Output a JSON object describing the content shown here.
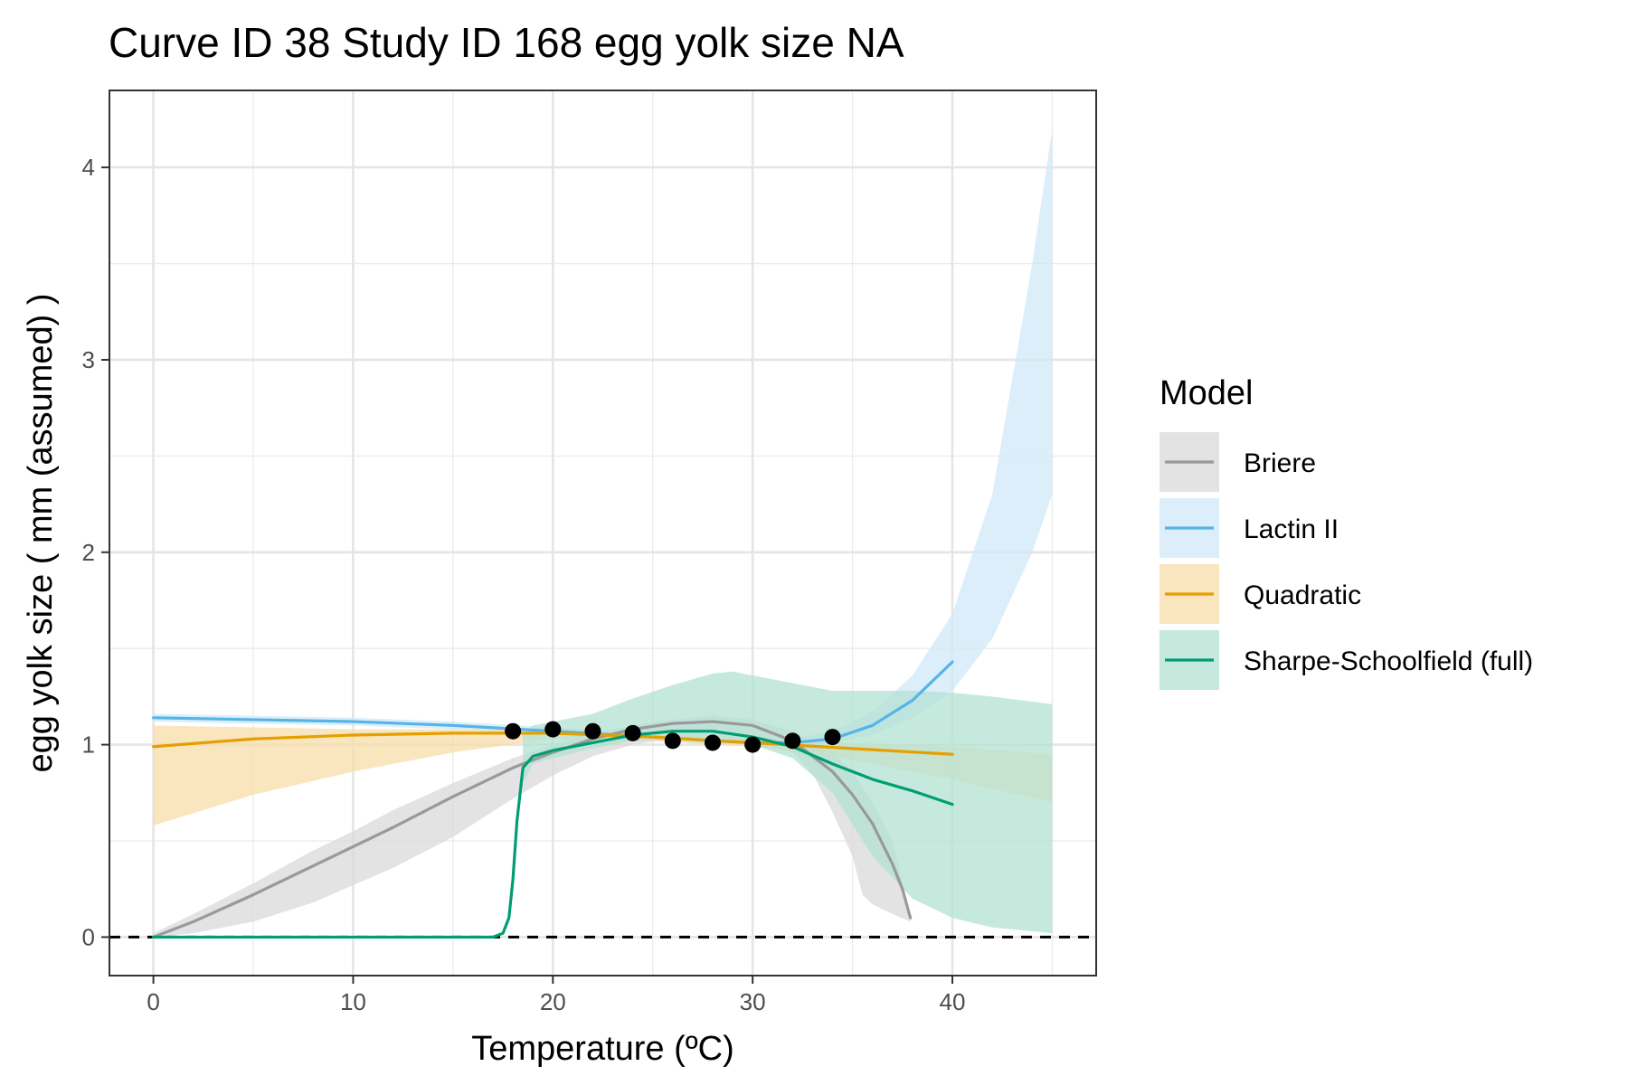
{
  "chart_data": {
    "type": "line",
    "title": "Curve ID 38 Study ID 168 egg yolk size NA",
    "xlabel": "Temperature (ºC)",
    "ylabel": "egg yolk size ( mm (assumed) )",
    "xlim": [
      -2.2,
      47.2
    ],
    "ylim": [
      -0.2,
      4.4
    ],
    "x_ticks": [
      0,
      10,
      20,
      30,
      40
    ],
    "y_ticks": [
      0,
      1,
      2,
      3,
      4
    ],
    "grid": true,
    "zero_line": "dashed",
    "legend": {
      "title": "Model",
      "position": "right",
      "entries": [
        "Briere",
        "Lactin II",
        "Quadratic",
        "Sharpe-Schoolfield (full)"
      ]
    },
    "points": {
      "x": [
        18,
        20,
        22,
        24,
        26,
        28,
        30,
        32,
        34
      ],
      "y": [
        1.07,
        1.08,
        1.07,
        1.06,
        1.02,
        1.01,
        1.0,
        1.02,
        1.04
      ],
      "color": "#000000"
    },
    "series": [
      {
        "name": "Briere",
        "color": "#999999",
        "fill": "#d9d9d9",
        "x": [
          0,
          2,
          5,
          8,
          10,
          12,
          15,
          18,
          20,
          22,
          24,
          26,
          28,
          30,
          32,
          34,
          35,
          36,
          37,
          37.5,
          37.9
        ],
        "y": [
          0,
          0.08,
          0.22,
          0.37,
          0.47,
          0.57,
          0.73,
          0.88,
          0.96,
          1.03,
          1.08,
          1.11,
          1.12,
          1.1,
          1.02,
          0.86,
          0.74,
          0.59,
          0.38,
          0.25,
          0.1
        ],
        "band_x": [
          0,
          2,
          5,
          8,
          10,
          12,
          15,
          18,
          20,
          22,
          24,
          26,
          28,
          30,
          32,
          33,
          34,
          35,
          35.5,
          36,
          37,
          37.9
        ],
        "band_upper": [
          0.02,
          0.12,
          0.28,
          0.45,
          0.55,
          0.66,
          0.8,
          0.93,
          1.0,
          1.06,
          1.1,
          1.13,
          1.15,
          1.13,
          1.07,
          1.02,
          0.96,
          0.86,
          0.78,
          0.7,
          0.5,
          0.1
        ],
        "band_lower": [
          0,
          0.02,
          0.08,
          0.18,
          0.27,
          0.36,
          0.52,
          0.72,
          0.84,
          0.94,
          1.0,
          1.03,
          1.04,
          1.03,
          0.96,
          0.85,
          0.65,
          0.42,
          0.22,
          0.17,
          0.12,
          0.08
        ]
      },
      {
        "name": "Lactin II",
        "color": "#56b4e9",
        "fill": "#cfe8f7",
        "x": [
          0,
          5,
          10,
          15,
          20,
          25,
          28,
          30,
          32,
          34,
          36,
          38,
          40
        ],
        "y": [
          1.14,
          1.13,
          1.12,
          1.1,
          1.07,
          1.04,
          1.02,
          1.01,
          1.01,
          1.03,
          1.1,
          1.23,
          1.43
        ],
        "band_x": [
          0,
          5,
          10,
          15,
          20,
          25,
          28,
          30,
          32,
          34,
          36,
          38,
          40,
          42,
          44,
          45
        ],
        "band_upper": [
          1.16,
          1.15,
          1.14,
          1.12,
          1.09,
          1.06,
          1.04,
          1.03,
          1.03,
          1.07,
          1.17,
          1.36,
          1.68,
          2.3,
          3.5,
          4.2
        ],
        "band_lower": [
          1.12,
          1.11,
          1.1,
          1.08,
          1.05,
          1.02,
          1.0,
          0.99,
          0.99,
          1.01,
          1.05,
          1.14,
          1.28,
          1.55,
          2.0,
          2.3
        ]
      },
      {
        "name": "Quadratic",
        "color": "#e69f00",
        "fill": "#f7dca8",
        "x": [
          0,
          5,
          10,
          15,
          20,
          25,
          30,
          35,
          40
        ],
        "y": [
          0.99,
          1.03,
          1.05,
          1.06,
          1.06,
          1.04,
          1.01,
          0.98,
          0.95
        ],
        "band_x": [
          0,
          5,
          10,
          15,
          20,
          25,
          30,
          35,
          40,
          45
        ],
        "band_upper": [
          1.1,
          1.09,
          1.08,
          1.08,
          1.08,
          1.06,
          1.03,
          1.01,
          0.99,
          0.95
        ],
        "band_lower": [
          0.58,
          0.74,
          0.86,
          0.96,
          1.03,
          1.02,
          0.99,
          0.92,
          0.82,
          0.7
        ]
      },
      {
        "name": "Sharpe-Schoolfield (full)",
        "color": "#009e73",
        "fill": "#b3e2d3",
        "x": [
          0,
          10,
          16,
          17,
          17.5,
          17.8,
          18,
          18.2,
          18.5,
          19,
          20,
          22,
          24,
          26,
          28,
          30,
          32,
          34,
          36,
          38,
          40
        ],
        "y": [
          0,
          0,
          0,
          0,
          0.02,
          0.1,
          0.3,
          0.6,
          0.88,
          0.94,
          0.97,
          1.01,
          1.05,
          1.07,
          1.07,
          1.04,
          0.99,
          0.9,
          0.82,
          0.76,
          0.69
        ],
        "band_x": [
          18.5,
          19,
          20,
          22,
          24,
          26,
          28,
          29,
          30,
          32,
          34,
          36,
          38,
          40,
          42,
          45
        ],
        "band_upper": [
          1.05,
          1.1,
          1.12,
          1.16,
          1.24,
          1.31,
          1.37,
          1.38,
          1.36,
          1.32,
          1.28,
          1.28,
          1.28,
          1.27,
          1.25,
          1.21
        ],
        "band_lower": [
          0.8,
          0.9,
          0.93,
          0.98,
          1.02,
          1.03,
          1.03,
          1.02,
          1.0,
          0.93,
          0.75,
          0.42,
          0.2,
          0.1,
          0.05,
          0.02
        ]
      }
    ]
  }
}
